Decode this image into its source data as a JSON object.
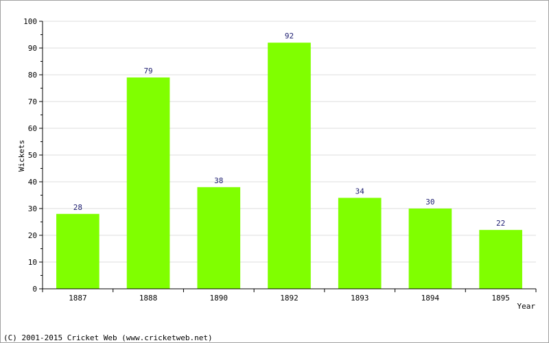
{
  "chart_data": {
    "type": "bar",
    "categories": [
      "1887",
      "1888",
      "1890",
      "1892",
      "1893",
      "1894",
      "1895"
    ],
    "values": [
      28,
      79,
      38,
      92,
      34,
      30,
      22
    ],
    "xlabel": "Year",
    "ylabel": "Wickets",
    "ylim": [
      0,
      100
    ],
    "yticks": [
      0,
      10,
      20,
      30,
      40,
      50,
      60,
      70,
      80,
      90,
      100
    ],
    "bar_color": "#80ff00",
    "grid": true,
    "data_labels": true
  },
  "footer": {
    "copyright": "(C) 2001-2015 Cricket Web (www.cricketweb.net)"
  }
}
